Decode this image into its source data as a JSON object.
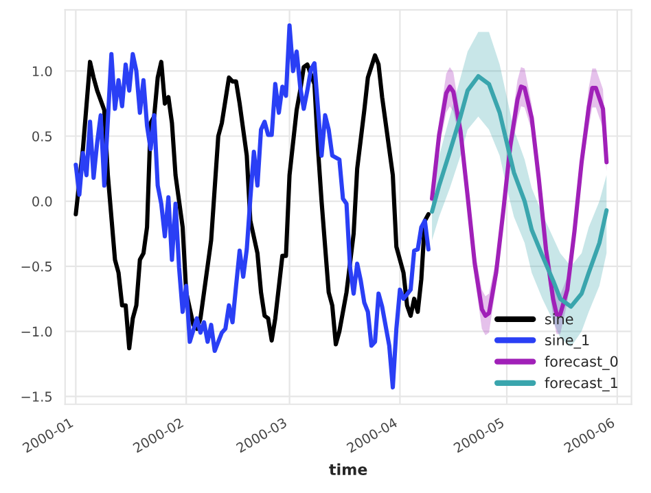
{
  "chart_data": {
    "type": "line",
    "xlabel": "time",
    "grid": true,
    "legend": "bottom right",
    "line_style": "solid",
    "marker": "none",
    "xlim": [
      "1999-12-29",
      "2000-06-05"
    ],
    "xticks": [
      "2000-01",
      "2000-02",
      "2000-03",
      "2000-04",
      "2000-05",
      "2000-06"
    ],
    "ylim": [
      -1.56,
      1.47
    ],
    "yticks": [
      {
        "value": -1.5,
        "label": "−1.5"
      },
      {
        "value": -1.0,
        "label": "−1.0"
      },
      {
        "value": -0.5,
        "label": "−0.5"
      },
      {
        "value": 0.0,
        "label": "0.0"
      },
      0.5,
      {
        "value": 1.0,
        "label": "1.0"
      }
    ],
    "series": [
      {
        "name": "sine",
        "color": "#000000",
        "x": [
          "2000-01-01",
          "2000-01-03",
          "2000-01-05",
          "2000-01-06",
          "2000-01-07",
          "2000-01-09",
          "2000-01-10",
          "2000-01-12",
          "2000-01-13",
          "2000-01-14",
          "2000-01-15",
          "2000-01-16",
          "2000-01-17",
          "2000-01-18",
          "2000-01-19",
          "2000-01-20",
          "2000-01-21",
          "2000-01-22",
          "2000-01-23",
          "2000-01-24",
          "2000-01-25",
          "2000-01-26",
          "2000-01-27",
          "2000-01-28",
          "2000-01-29",
          "2000-01-31",
          "2000-02-01",
          "2000-02-03",
          "2000-02-04",
          "2000-02-05",
          "2000-02-06",
          "2000-02-08",
          "2000-02-10",
          "2000-02-11",
          "2000-02-13",
          "2000-02-14",
          "2000-02-15",
          "2000-02-16",
          "2000-02-18",
          "2000-02-19",
          "2000-02-21",
          "2000-02-22",
          "2000-02-23",
          "2000-02-24",
          "2000-02-25",
          "2000-02-26",
          "2000-02-28",
          "2000-02-29",
          "2000-03-01",
          "2000-03-03",
          "2000-03-04",
          "2000-03-05",
          "2000-03-06",
          "2000-03-08",
          "2000-03-09",
          "2000-03-10",
          "2000-03-12",
          "2000-03-13",
          "2000-03-14",
          "2000-03-15",
          "2000-03-17",
          "2000-03-19",
          "2000-03-20",
          "2000-03-22",
          "2000-03-23",
          "2000-03-25",
          "2000-03-26",
          "2000-03-27",
          "2000-03-28",
          "2000-03-30",
          "2000-03-31",
          "2000-04-02",
          "2000-04-03",
          "2000-04-04",
          "2000-04-05",
          "2000-04-06",
          "2000-04-07",
          "2000-04-08",
          "2000-04-09"
        ],
        "values": [
          -0.1,
          0.4,
          1.07,
          0.95,
          0.85,
          0.7,
          0.2,
          -0.45,
          -0.55,
          -0.8,
          -0.8,
          -1.13,
          -0.9,
          -0.8,
          -0.45,
          -0.4,
          -0.2,
          0.6,
          0.65,
          0.95,
          1.07,
          0.75,
          0.8,
          0.6,
          0.2,
          -0.2,
          -0.7,
          -0.95,
          -0.98,
          -0.9,
          -0.7,
          -0.3,
          0.5,
          0.6,
          0.95,
          0.92,
          0.92,
          0.75,
          0.35,
          -0.15,
          -0.4,
          -0.7,
          -0.88,
          -0.9,
          -1.07,
          -0.9,
          -0.42,
          -0.42,
          0.2,
          0.7,
          0.85,
          1.03,
          1.05,
          0.9,
          0.4,
          0.0,
          -0.7,
          -0.8,
          -1.1,
          -1.0,
          -0.7,
          -0.25,
          0.25,
          0.7,
          0.95,
          1.12,
          1.05,
          0.8,
          0.6,
          0.2,
          -0.35,
          -0.55,
          -0.8,
          -0.88,
          -0.75,
          -0.85,
          -0.6,
          -0.15,
          -0.1
        ]
      },
      {
        "name": "sine_1",
        "color": "#2a3ff5",
        "x": [
          "2000-01-01",
          "2000-01-02",
          "2000-01-03",
          "2000-01-04",
          "2000-01-05",
          "2000-01-06",
          "2000-01-07",
          "2000-01-08",
          "2000-01-09",
          "2000-01-11",
          "2000-01-12",
          "2000-01-13",
          "2000-01-14",
          "2000-01-15",
          "2000-01-16",
          "2000-01-17",
          "2000-01-18",
          "2000-01-19",
          "2000-01-20",
          "2000-01-21",
          "2000-01-22",
          "2000-01-23",
          "2000-01-24",
          "2000-01-25",
          "2000-01-26",
          "2000-01-27",
          "2000-01-28",
          "2000-01-29",
          "2000-01-30",
          "2000-01-31",
          "2000-02-01",
          "2000-02-02",
          "2000-02-04",
          "2000-02-05",
          "2000-02-06",
          "2000-02-07",
          "2000-02-08",
          "2000-02-09",
          "2000-02-11",
          "2000-02-12",
          "2000-02-13",
          "2000-02-14",
          "2000-02-15",
          "2000-02-16",
          "2000-02-17",
          "2000-02-18",
          "2000-02-19",
          "2000-02-20",
          "2000-02-21",
          "2000-02-22",
          "2000-02-23",
          "2000-02-24",
          "2000-02-25",
          "2000-02-26",
          "2000-02-27",
          "2000-02-28",
          "2000-02-29",
          "2000-03-01",
          "2000-03-02",
          "2000-03-03",
          "2000-03-04",
          "2000-03-05",
          "2000-03-06",
          "2000-03-07",
          "2000-03-08",
          "2000-03-09",
          "2000-03-10",
          "2000-03-11",
          "2000-03-12",
          "2000-03-13",
          "2000-03-15",
          "2000-03-16",
          "2000-03-17",
          "2000-03-18",
          "2000-03-19",
          "2000-03-20",
          "2000-03-21",
          "2000-03-22",
          "2000-03-23",
          "2000-03-24",
          "2000-03-25",
          "2000-03-26",
          "2000-03-27",
          "2000-03-29",
          "2000-03-30",
          "2000-03-31",
          "2000-04-01",
          "2000-04-02",
          "2000-04-04",
          "2000-04-05",
          "2000-04-06",
          "2000-04-07",
          "2000-04-08",
          "2000-04-09"
        ],
        "values": [
          0.28,
          0.05,
          0.37,
          0.2,
          0.61,
          0.18,
          0.45,
          0.66,
          0.12,
          1.13,
          0.71,
          0.93,
          0.73,
          1.05,
          0.85,
          1.13,
          1.0,
          0.68,
          0.93,
          0.58,
          0.4,
          0.66,
          0.12,
          -0.02,
          -0.27,
          0.03,
          -0.45,
          -0.02,
          -0.51,
          -0.85,
          -0.65,
          -1.08,
          -0.9,
          -1.01,
          -0.93,
          -1.08,
          -0.95,
          -1.15,
          -1.01,
          -0.98,
          -0.8,
          -0.93,
          -0.65,
          -0.38,
          -0.58,
          -0.37,
          0.02,
          0.38,
          0.12,
          0.55,
          0.61,
          0.51,
          0.51,
          0.9,
          0.68,
          0.88,
          0.81,
          1.35,
          1.0,
          1.15,
          0.88,
          0.71,
          0.85,
          1.01,
          1.06,
          0.71,
          0.35,
          0.66,
          0.55,
          0.35,
          0.32,
          0.02,
          -0.02,
          -0.51,
          -0.71,
          -0.48,
          -0.61,
          -0.78,
          -0.85,
          -1.11,
          -1.08,
          -0.71,
          -0.81,
          -1.11,
          -1.43,
          -0.98,
          -0.68,
          -0.75,
          -0.68,
          -0.38,
          -0.37,
          -0.2,
          -0.15,
          -0.37
        ]
      },
      {
        "name": "forecast_0",
        "color": "#a020b8",
        "x": [
          "2000-04-10",
          "2000-04-12",
          "2000-04-14",
          "2000-04-15",
          "2000-04-16",
          "2000-04-18",
          "2000-04-20",
          "2000-04-22",
          "2000-04-24",
          "2000-04-25",
          "2000-04-26",
          "2000-04-28",
          "2000-04-30",
          "2000-05-02",
          "2000-05-04",
          "2000-05-05",
          "2000-05-06",
          "2000-05-08",
          "2000-05-10",
          "2000-05-12",
          "2000-05-14",
          "2000-05-15",
          "2000-05-16",
          "2000-05-18",
          "2000-05-20",
          "2000-05-22",
          "2000-05-24",
          "2000-05-25",
          "2000-05-26",
          "2000-05-28",
          "2000-05-29"
        ],
        "values": [
          0.02,
          0.51,
          0.83,
          0.88,
          0.84,
          0.54,
          0.04,
          -0.48,
          -0.83,
          -0.88,
          -0.86,
          -0.55,
          -0.08,
          0.43,
          0.78,
          0.88,
          0.87,
          0.64,
          0.17,
          -0.37,
          -0.75,
          -0.87,
          -0.87,
          -0.68,
          -0.23,
          0.3,
          0.72,
          0.87,
          0.87,
          0.71,
          0.3
        ],
        "upper": [
          0.09,
          0.61,
          0.98,
          1.03,
          0.99,
          0.64,
          0.11,
          -0.38,
          -0.68,
          -0.73,
          -0.71,
          -0.45,
          -0.01,
          0.53,
          0.93,
          1.03,
          1.02,
          0.74,
          0.24,
          -0.3,
          -0.6,
          -0.72,
          -0.72,
          -0.58,
          -0.16,
          0.37,
          0.87,
          1.02,
          1.02,
          0.86,
          0.37
        ],
        "lower": [
          -0.05,
          0.41,
          0.68,
          0.73,
          0.69,
          0.44,
          -0.03,
          -0.58,
          -0.98,
          -1.03,
          -1.01,
          -0.65,
          -0.15,
          0.33,
          0.63,
          0.73,
          0.72,
          0.54,
          0.1,
          -0.44,
          -0.9,
          -1.02,
          -1.02,
          -0.78,
          -0.3,
          0.23,
          0.57,
          0.72,
          0.72,
          0.56,
          0.23
        ]
      },
      {
        "name": "forecast_1",
        "color": "#3aa5ad",
        "x": [
          "2000-04-10",
          "2000-04-12",
          "2000-04-15",
          "2000-04-18",
          "2000-04-20",
          "2000-04-23",
          "2000-04-26",
          "2000-04-29",
          "2000-05-01",
          "2000-05-03",
          "2000-05-06",
          "2000-05-08",
          "2000-05-11",
          "2000-05-14",
          "2000-05-16",
          "2000-05-19",
          "2000-05-22",
          "2000-05-24",
          "2000-05-27",
          "2000-05-29"
        ],
        "values": [
          -0.08,
          0.12,
          0.38,
          0.65,
          0.85,
          0.96,
          0.9,
          0.68,
          0.45,
          0.22,
          0.0,
          -0.22,
          -0.42,
          -0.61,
          -0.75,
          -0.81,
          -0.71,
          -0.55,
          -0.32,
          -0.07
        ],
        "upper": [
          0.1,
          0.35,
          0.65,
          0.95,
          1.15,
          1.3,
          1.3,
          1.05,
          0.8,
          0.55,
          0.32,
          0.1,
          -0.1,
          -0.28,
          -0.4,
          -0.5,
          -0.4,
          -0.2,
          0.0,
          0.2
        ],
        "lower": [
          -0.3,
          -0.12,
          0.1,
          0.35,
          0.55,
          0.65,
          0.55,
          0.35,
          0.1,
          -0.12,
          -0.32,
          -0.55,
          -0.75,
          -0.92,
          -1.05,
          -1.12,
          -1.0,
          -0.85,
          -0.65,
          -0.4
        ]
      }
    ]
  }
}
